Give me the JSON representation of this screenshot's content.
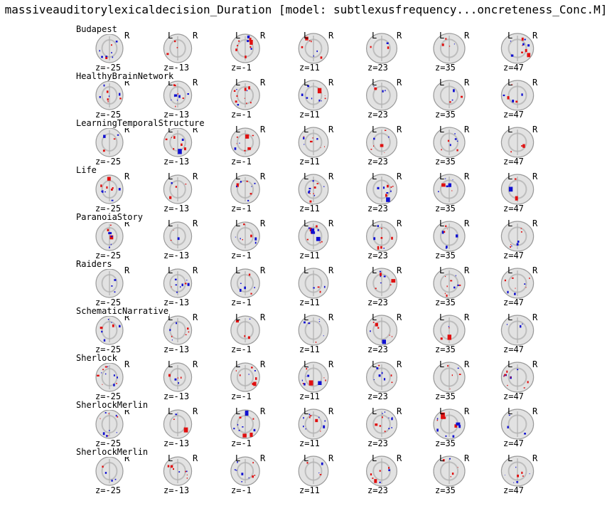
{
  "figure": {
    "title": "massiveauditorylexicaldecision_Duration [model: subtlexusfrequency...oncreteness_Conc.M]",
    "left_label": "L",
    "right_label": "R",
    "slices": [
      "z=-25",
      "z=-13",
      "z=-1",
      "z=11",
      "z=23",
      "z=35",
      "z=47"
    ],
    "rows": [
      {
        "label": "Budapest"
      },
      {
        "label": "HealthyBrainNetwork"
      },
      {
        "label": "LearningTemporalStructure"
      },
      {
        "label": "Life"
      },
      {
        "label": "ParanoiaStory"
      },
      {
        "label": "Raiders"
      },
      {
        "label": "SchematicNarrative"
      },
      {
        "label": "Sherlock"
      },
      {
        "label": "SherlockMerlin"
      },
      {
        "label": "SherlockMerlin"
      }
    ],
    "colors": {
      "positive": "#e01010",
      "negative": "#1010d0",
      "brain_dark": "#9a9a9a",
      "brain_light": "#e2e2e2"
    }
  }
}
